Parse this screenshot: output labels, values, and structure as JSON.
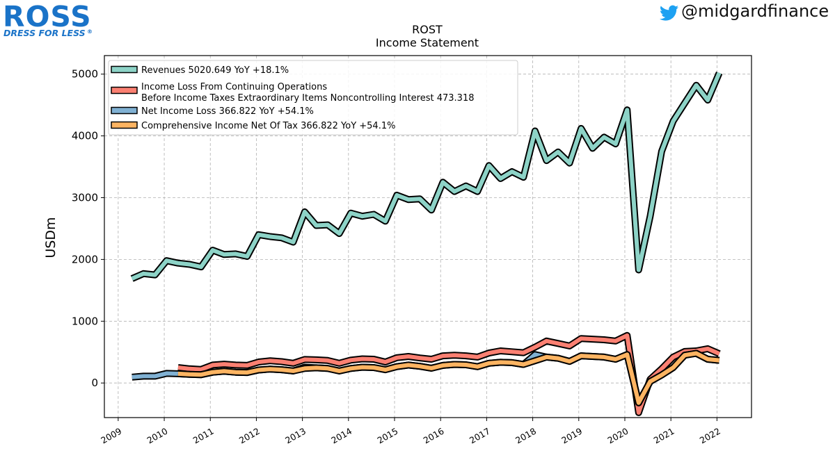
{
  "branding": {
    "logo_text": "ROSS",
    "logo_tagline": "DRESS FOR LESS",
    "logo_mark": "®",
    "social_handle": "@midgardfinance",
    "social_icon": "twitter-bird-icon",
    "logo_color": "#1a73c8",
    "twitter_color": "#1da1f2"
  },
  "chart_data": {
    "type": "area",
    "title": "ROST",
    "subtitle": "Income Statement",
    "ylabel": "USDm",
    "xlabel": "",
    "ylim": [
      -560,
      5300
    ],
    "xlim": [
      2008.7,
      2022.75
    ],
    "yticks": [
      0,
      1000,
      2000,
      3000,
      4000,
      5000
    ],
    "xticks": [
      "2009",
      "2010",
      "2011",
      "2012",
      "2013",
      "2014",
      "2015",
      "2016",
      "2017",
      "2018",
      "2019",
      "2020",
      "2021",
      "2022"
    ],
    "grid": true,
    "legend_position": "top-left",
    "x": [
      2009.3,
      2009.55,
      2009.8,
      2010.05,
      2010.3,
      2010.55,
      2010.8,
      2011.05,
      2011.3,
      2011.55,
      2011.8,
      2012.05,
      2012.3,
      2012.55,
      2012.8,
      2013.05,
      2013.3,
      2013.55,
      2013.8,
      2014.05,
      2014.3,
      2014.55,
      2014.8,
      2015.05,
      2015.3,
      2015.55,
      2015.8,
      2016.05,
      2016.3,
      2016.55,
      2016.8,
      2017.05,
      2017.3,
      2017.55,
      2017.8,
      2018.05,
      2018.3,
      2018.55,
      2018.8,
      2019.05,
      2019.3,
      2019.55,
      2019.8,
      2020.05,
      2020.3,
      2020.55,
      2020.8,
      2021.05,
      2021.3,
      2021.55,
      2021.8,
      2022.05
    ],
    "series": [
      {
        "name": "Revenues 5020.649 YoY +18.1%",
        "color": "#8dd3c7",
        "values": [
          1690,
          1770,
          1750,
          1980,
          1940,
          1920,
          1880,
          2150,
          2080,
          2090,
          2050,
          2400,
          2370,
          2350,
          2280,
          2770,
          2550,
          2560,
          2420,
          2750,
          2700,
          2730,
          2620,
          3040,
          2970,
          2980,
          2800,
          3250,
          3100,
          3190,
          3100,
          3520,
          3310,
          3420,
          3330,
          4080,
          3600,
          3740,
          3560,
          4120,
          3800,
          3980,
          3870,
          4420,
          1830,
          2700,
          3750,
          4240,
          4530,
          4820,
          4580,
          5020
        ]
      },
      {
        "name": "Income Loss From Continuing Operations\nBefore Income Taxes Extraordinary Items Noncontrolling Interest 473.318",
        "color": "#fb8072",
        "values": [
          null,
          null,
          null,
          null,
          250,
          230,
          220,
          290,
          305,
          290,
          285,
          340,
          360,
          345,
          320,
          380,
          375,
          365,
          320,
          370,
          390,
          385,
          340,
          410,
          430,
          405,
          385,
          440,
          450,
          440,
          420,
          485,
          520,
          505,
          490,
          580,
          680,
          640,
          600,
          720,
          710,
          700,
          680,
          770,
          -480,
          60,
          230,
          420,
          510,
          520,
          555,
          473.3
        ]
      },
      {
        "name": "Net Income Loss 366.822 YoY +54.1%",
        "color": "#80b1d3",
        "values": [
          95,
          110,
          110,
          155,
          150,
          140,
          135,
          175,
          190,
          175,
          170,
          210,
          225,
          215,
          195,
          255,
          245,
          235,
          195,
          235,
          255,
          250,
          215,
          265,
          290,
          270,
          240,
          285,
          300,
          295,
          265,
          320,
          335,
          330,
          300,
          460,
          420,
          400,
          350,
          440,
          430,
          420,
          385,
          460,
          -320,
          25,
          130,
          250,
          450,
          480,
          385,
          366.8
        ]
      },
      {
        "name": "Comprehensive Income Net Of Tax 366.822 YoY +54.1%",
        "color": "#fdb462",
        "values": [
          null,
          null,
          null,
          null,
          150,
          140,
          135,
          175,
          190,
          175,
          170,
          210,
          225,
          215,
          195,
          235,
          245,
          235,
          195,
          235,
          255,
          250,
          215,
          265,
          290,
          270,
          240,
          285,
          300,
          295,
          265,
          320,
          335,
          330,
          300,
          360,
          420,
          400,
          350,
          440,
          430,
          420,
          385,
          460,
          -320,
          25,
          130,
          250,
          450,
          480,
          385,
          366.8
        ]
      }
    ]
  }
}
